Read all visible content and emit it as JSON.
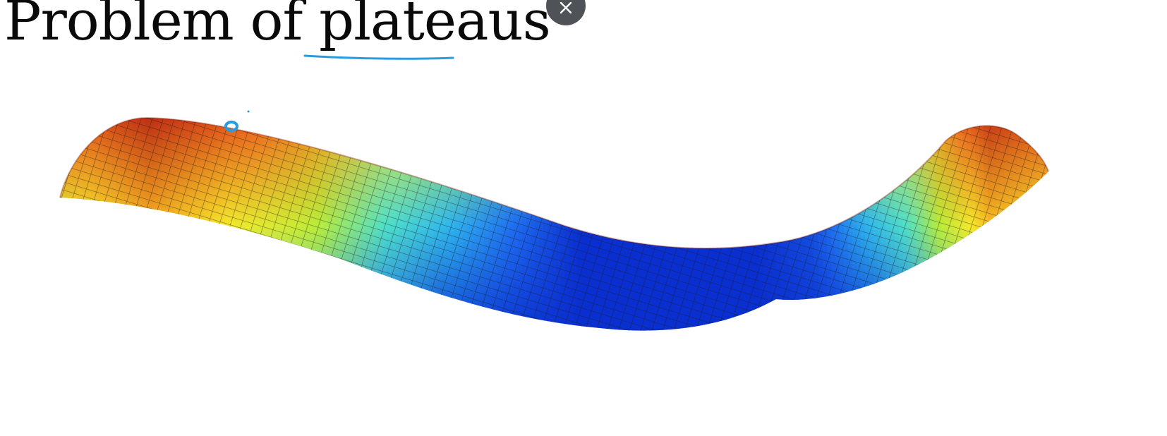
{
  "slide": {
    "title": "Problem of plateaus"
  },
  "colors": {
    "annotation_pen": "#2b9be0",
    "close_button_bg": "#4f5357",
    "colormap": [
      "#0a2fd0",
      "#1e6cf0",
      "#2fb6ee",
      "#4fe0c8",
      "#b8ec3a",
      "#f4e82a",
      "#f8a01e",
      "#ee4a1a",
      "#b62012"
    ]
  },
  "icons": {
    "close": "close-icon"
  }
}
